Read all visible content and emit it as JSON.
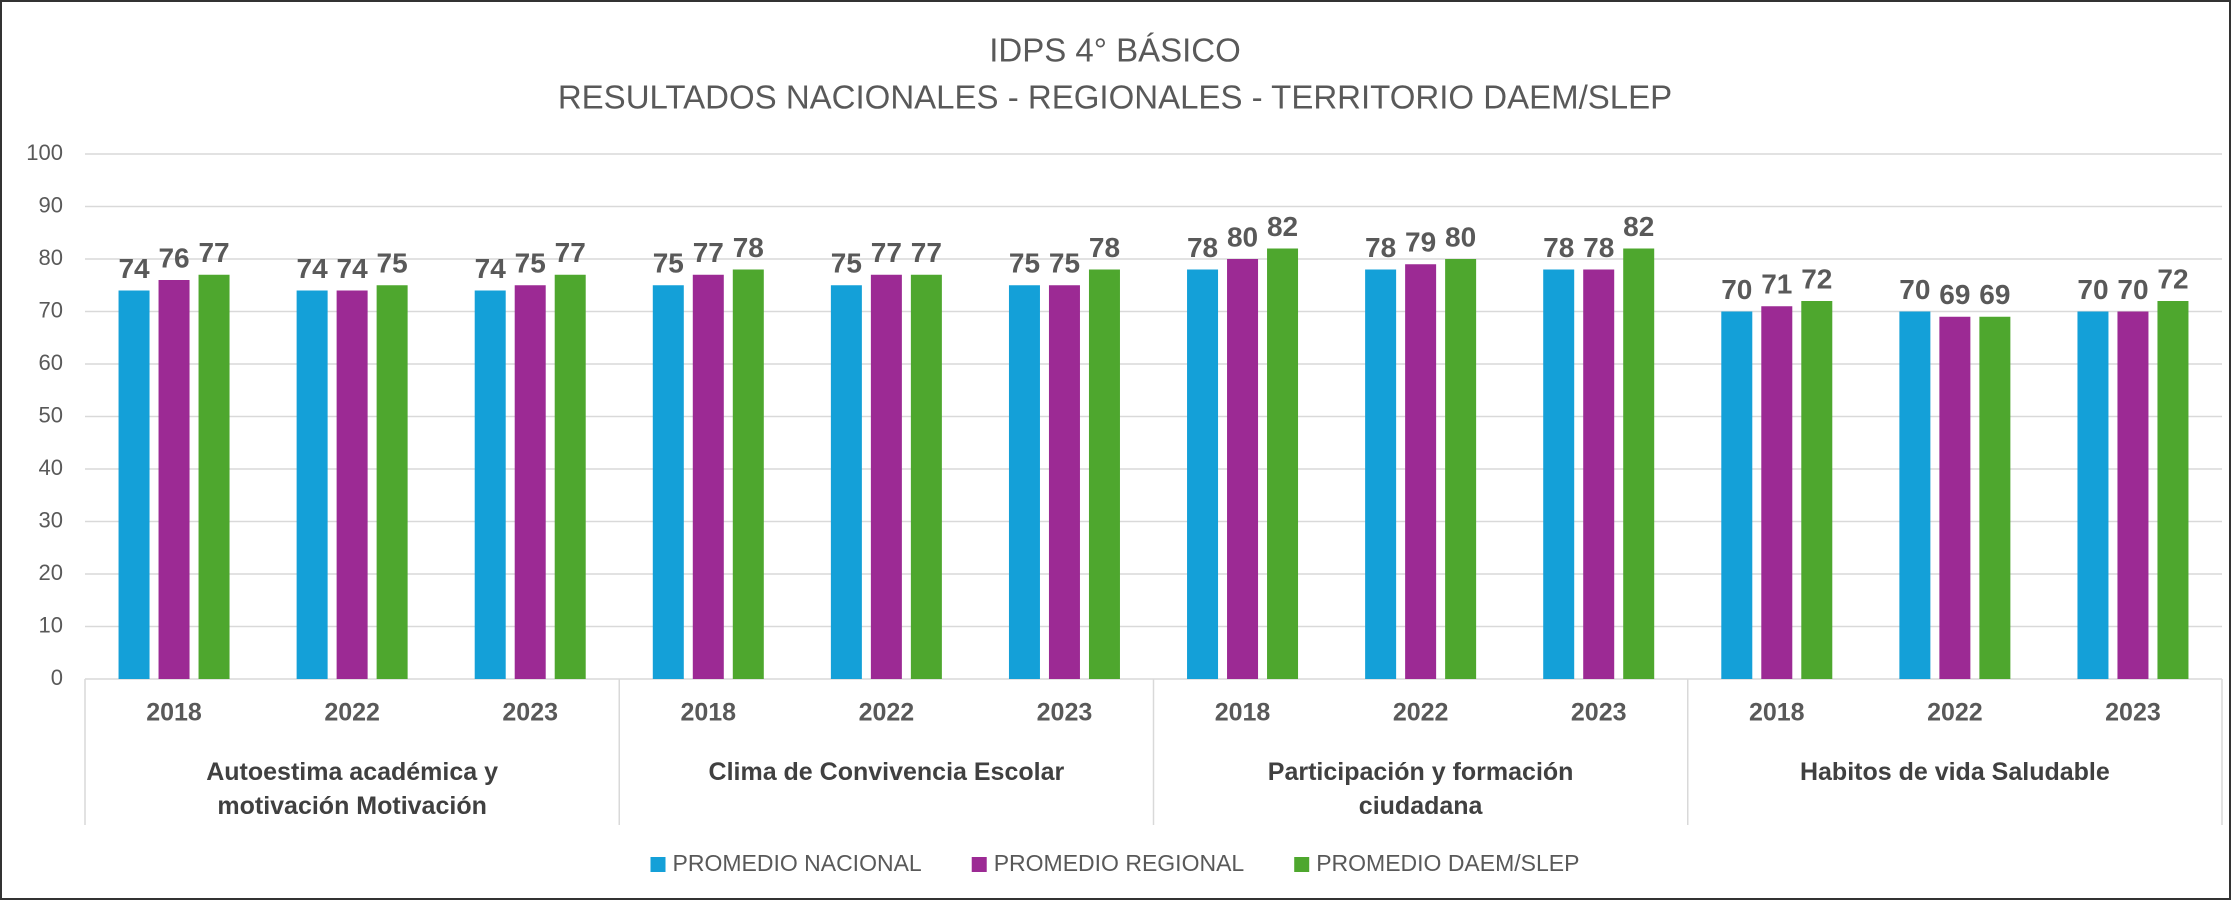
{
  "chart_data": {
    "type": "bar",
    "title": "IDPS 4° BÁSICO",
    "subtitle": "RESULTADOS NACIONALES - REGIONALES - TERRITORIO DAEM/SLEP",
    "categories": [
      "2018",
      "2022",
      "2023",
      "2018",
      "2022",
      "2023",
      "2018",
      "2022",
      "2023",
      "2018",
      "2022",
      "2023"
    ],
    "groups": [
      "Autoestima académica y motivación Motivación",
      "Clima de Convivencia Escolar",
      "Participación y formación ciudadana",
      "Habitos de vida Saludable"
    ],
    "series": [
      {
        "name": "PROMEDIO NACIONAL",
        "color": "#14a0d8",
        "values": [
          74,
          74,
          74,
          75,
          75,
          75,
          78,
          78,
          78,
          70,
          70,
          70
        ]
      },
      {
        "name": "PROMEDIO REGIONAL",
        "color": "#9c2a94",
        "values": [
          76,
          74,
          75,
          77,
          77,
          75,
          80,
          79,
          78,
          71,
          69,
          70
        ]
      },
      {
        "name": "PROMEDIO DAEM/SLEP",
        "color": "#4ea72e",
        "values": [
          77,
          75,
          77,
          78,
          77,
          78,
          82,
          80,
          82,
          72,
          69,
          72
        ]
      }
    ],
    "ylim": [
      0,
      100
    ],
    "yticks": [
      0,
      10,
      20,
      30,
      40,
      50,
      60,
      70,
      80,
      90,
      100
    ],
    "grid": true,
    "legend": "bottom"
  }
}
